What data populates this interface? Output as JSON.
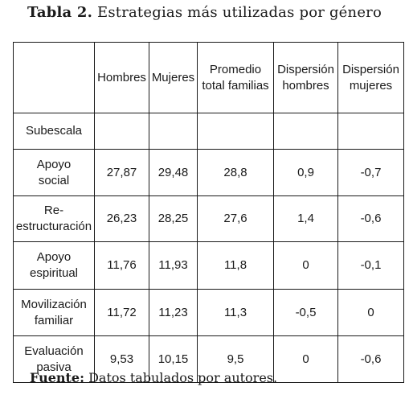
{
  "caption": {
    "label": "Tabla 2.",
    "text": "Estrategias más utilizadas por género"
  },
  "table": {
    "headers": [
      {
        "lines": [
          ""
        ]
      },
      {
        "lines": [
          "Hombres"
        ]
      },
      {
        "lines": [
          "Mujeres"
        ]
      },
      {
        "lines": [
          "Promedio",
          "total familias"
        ]
      },
      {
        "lines": [
          "Dispersión",
          "hombres"
        ]
      },
      {
        "lines": [
          "Dispersión",
          "mujeres"
        ]
      }
    ],
    "rows": [
      {
        "label": [
          "Subescala"
        ],
        "values": [
          "",
          "",
          "",
          "",
          ""
        ]
      },
      {
        "label": [
          "Apoyo",
          "social"
        ],
        "values": [
          "27,87",
          "29,48",
          "28,8",
          "0,9",
          "-0,7"
        ]
      },
      {
        "label": [
          "Re-",
          "estructuración"
        ],
        "values": [
          "26,23",
          "28,25",
          "27,6",
          "1,4",
          "-0,6"
        ]
      },
      {
        "label": [
          "Apoyo",
          "espiritual"
        ],
        "values": [
          "11,76",
          "11,93",
          "11,8",
          "0",
          "-0,1"
        ]
      },
      {
        "label": [
          "Movilización",
          "familiar"
        ],
        "values": [
          "11,72",
          "11,23",
          "11,3",
          "-0,5",
          "0"
        ]
      },
      {
        "label": [
          "Evaluación",
          "pasiva"
        ],
        "values": [
          "9,53",
          "10,15",
          "9,5",
          "0",
          "-0,6"
        ]
      }
    ]
  },
  "footer": {
    "label": "Fuente:",
    "text": "Datos tabulados por autores."
  }
}
